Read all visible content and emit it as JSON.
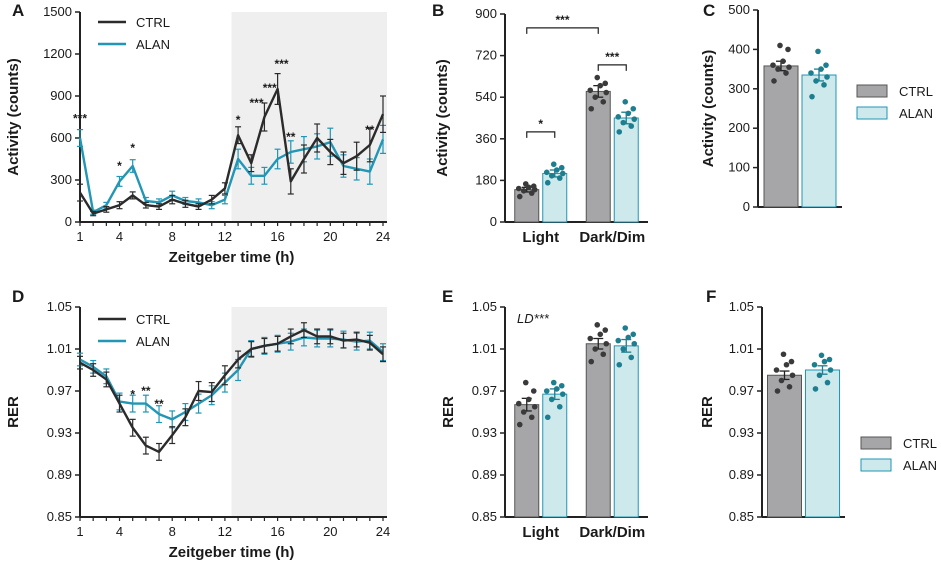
{
  "colors": {
    "ctrl_line": "#2b2b2b",
    "alan_line": "#2196b5",
    "ctrl_bar": "#a6a6a8",
    "alan_bar": "#cde9ec",
    "shade": "#efefef",
    "ctrl_dot": "#3a3a3a",
    "alan_dot": "#1c7e8f"
  },
  "panel_letters": [
    "A",
    "B",
    "C",
    "D",
    "E",
    "F"
  ],
  "chart_data": [
    {
      "id": "A",
      "type": "line",
      "xlabel": "Zeitgeber time (h)",
      "ylabel": "Activity (counts)",
      "xlim": [
        1,
        24
      ],
      "ylim": [
        0,
        1500
      ],
      "xticks": [
        1,
        4,
        8,
        12,
        16,
        20,
        24
      ],
      "xtick_labels": [
        "1",
        "4",
        "8",
        "12",
        "16",
        "20",
        "24"
      ],
      "yticks": [
        0,
        300,
        600,
        900,
        1200,
        1500
      ],
      "ytick_labels": [
        "0",
        "300",
        "600",
        "900",
        "1200",
        "1500"
      ],
      "shade": [
        12.5,
        24
      ],
      "legend": [
        "CTRL",
        "ALAN"
      ],
      "x": [
        1,
        2,
        3,
        4,
        5,
        6,
        7,
        8,
        9,
        10,
        11,
        12,
        13,
        14,
        15,
        16,
        17,
        18,
        19,
        20,
        21,
        22,
        23,
        24
      ],
      "series": [
        {
          "name": "CTRL",
          "values": [
            210,
            60,
            90,
            120,
            190,
            120,
            110,
            160,
            130,
            110,
            160,
            240,
            620,
            420,
            750,
            950,
            290,
            450,
            600,
            500,
            420,
            470,
            550,
            770
          ],
          "err": [
            60,
            15,
            20,
            25,
            25,
            20,
            20,
            30,
            25,
            20,
            30,
            40,
            60,
            60,
            100,
            110,
            90,
            100,
            100,
            90,
            80,
            100,
            120,
            130
          ]
        },
        {
          "name": "ALAN",
          "values": [
            600,
            70,
            120,
            290,
            400,
            150,
            140,
            190,
            150,
            140,
            120,
            160,
            450,
            330,
            330,
            450,
            500,
            520,
            540,
            570,
            400,
            380,
            360,
            590
          ],
          "err": [
            60,
            15,
            20,
            35,
            45,
            25,
            25,
            30,
            25,
            25,
            25,
            30,
            70,
            60,
            60,
            70,
            80,
            90,
            90,
            100,
            80,
            80,
            90,
            100
          ]
        }
      ],
      "annotations": [
        {
          "x": 1,
          "y": 710,
          "text": "***"
        },
        {
          "x": 4,
          "y": 370,
          "text": "*"
        },
        {
          "x": 5,
          "y": 500,
          "text": "*"
        },
        {
          "x": 13,
          "y": 700,
          "text": "*"
        },
        {
          "x": 14.4,
          "y": 820,
          "text": "***"
        },
        {
          "x": 15.4,
          "y": 930,
          "text": "***"
        },
        {
          "x": 16.3,
          "y": 1100,
          "text": "***"
        },
        {
          "x": 17,
          "y": 580,
          "text": "**"
        },
        {
          "x": 23,
          "y": 630,
          "text": "**"
        }
      ]
    },
    {
      "id": "B",
      "type": "bar",
      "categories": [
        "Light",
        "Dark/Dim"
      ],
      "ylabel": "Activity (counts)",
      "ylim": [
        0,
        900
      ],
      "yticks": [
        0,
        180,
        360,
        540,
        720,
        900
      ],
      "ytick_labels": [
        "0",
        "180",
        "360",
        "540",
        "720",
        "900"
      ],
      "series": [
        {
          "name": "CTRL",
          "values": [
            140,
            565
          ],
          "err": [
            10,
            25
          ],
          "points": [
            [
              110,
              125,
              135,
              140,
              145,
              150,
              155,
              165
            ],
            [
              490,
              520,
              540,
              560,
              570,
              590,
              600,
              625
            ]
          ]
        },
        {
          "name": "ALAN",
          "values": [
            210,
            450
          ],
          "err": [
            15,
            25
          ],
          "points": [
            [
              170,
              190,
              200,
              210,
              215,
              225,
              235,
              250
            ],
            [
              390,
              415,
              430,
              445,
              455,
              470,
              490,
              520
            ]
          ]
        }
      ],
      "brackets": [
        {
          "from": [
            0,
            0
          ],
          "to": [
            0,
            1
          ],
          "y": 390,
          "text": "*"
        },
        {
          "from": [
            0,
            0
          ],
          "to": [
            1,
            0
          ],
          "y": 840,
          "text": "***"
        },
        {
          "from": [
            1,
            0
          ],
          "to": [
            1,
            1
          ],
          "y": 680,
          "text": "***"
        }
      ]
    },
    {
      "id": "C",
      "type": "bar",
      "categories": [
        ""
      ],
      "ylabel": "Activity (counts)",
      "ylim": [
        0,
        500
      ],
      "yticks": [
        0,
        100,
        200,
        300,
        400,
        500
      ],
      "ytick_labels": [
        "0",
        "100",
        "200",
        "300",
        "400",
        "500"
      ],
      "legend": [
        "CTRL",
        "ALAN"
      ],
      "series": [
        {
          "name": "CTRL",
          "values": [
            358
          ],
          "err": [
            12
          ],
          "points": [
            [
              320,
              340,
              350,
              355,
              360,
              370,
              400,
              410
            ]
          ]
        },
        {
          "name": "ALAN",
          "values": [
            335
          ],
          "err": [
            15
          ],
          "points": [
            [
              280,
              310,
              320,
              330,
              340,
              350,
              360,
              395
            ]
          ]
        }
      ]
    },
    {
      "id": "D",
      "type": "line",
      "xlabel": "Zeitgeber time (h)",
      "ylabel": "RER",
      "xlim": [
        1,
        24
      ],
      "ylim": [
        0.85,
        1.05
      ],
      "xticks": [
        1,
        4,
        8,
        12,
        16,
        20,
        24
      ],
      "xtick_labels": [
        "1",
        "4",
        "8",
        "12",
        "16",
        "20",
        "24"
      ],
      "yticks": [
        0.85,
        0.89,
        0.93,
        0.97,
        1.01,
        1.05
      ],
      "ytick_labels": [
        "0.85",
        "0.89",
        "0.93",
        "0.97",
        "1.01",
        "1.05"
      ],
      "shade": [
        12.5,
        24
      ],
      "legend": [
        "CTRL",
        "ALAN"
      ],
      "x": [
        1,
        2,
        3,
        4,
        5,
        6,
        7,
        8,
        9,
        10,
        11,
        12,
        13,
        14,
        15,
        16,
        17,
        18,
        19,
        20,
        21,
        22,
        23,
        24
      ],
      "series": [
        {
          "name": "CTRL",
          "values": [
            0.997,
            0.99,
            0.981,
            0.958,
            0.935,
            0.918,
            0.912,
            0.928,
            0.945,
            0.97,
            0.969,
            0.985,
            1.0,
            1.01,
            1.013,
            1.015,
            1.022,
            1.028,
            1.022,
            1.022,
            1.018,
            1.019,
            1.016,
            1.005
          ],
          "err": [
            0.006,
            0.006,
            0.007,
            0.008,
            0.008,
            0.008,
            0.008,
            0.008,
            0.008,
            0.009,
            0.009,
            0.009,
            0.008,
            0.007,
            0.007,
            0.007,
            0.007,
            0.007,
            0.007,
            0.007,
            0.007,
            0.007,
            0.007,
            0.007
          ]
        },
        {
          "name": "ALAN",
          "values": [
            1.0,
            0.993,
            0.984,
            0.96,
            0.958,
            0.958,
            0.948,
            0.943,
            0.95,
            0.958,
            0.966,
            0.978,
            0.99,
            1.01,
            1.013,
            1.015,
            1.017,
            1.021,
            1.02,
            1.02,
            1.019,
            1.017,
            1.018,
            1.007
          ],
          "err": [
            0.006,
            0.006,
            0.007,
            0.008,
            0.008,
            0.008,
            0.008,
            0.008,
            0.008,
            0.009,
            0.009,
            0.009,
            0.01,
            0.008,
            0.008,
            0.008,
            0.008,
            0.008,
            0.008,
            0.008,
            0.008,
            0.008,
            0.008,
            0.008
          ]
        }
      ],
      "annotations": [
        {
          "x": 5,
          "y": 0.963,
          "text": "*"
        },
        {
          "x": 6,
          "y": 0.966,
          "text": "**"
        },
        {
          "x": 7,
          "y": 0.954,
          "text": "**"
        }
      ]
    },
    {
      "id": "E",
      "type": "bar",
      "categories": [
        "Light",
        "Dark/Dim"
      ],
      "ylabel": "RER",
      "annotation": "LD***",
      "ylim": [
        0.85,
        1.05
      ],
      "yticks": [
        0.85,
        0.89,
        0.93,
        0.97,
        1.01,
        1.05
      ],
      "ytick_labels": [
        "0.85",
        "0.89",
        "0.93",
        "0.97",
        "1.01",
        "1.05"
      ],
      "series": [
        {
          "name": "CTRL",
          "values": [
            0.957,
            1.015
          ],
          "err": [
            0.006,
            0.005
          ],
          "points": [
            [
              0.938,
              0.945,
              0.95,
              0.955,
              0.958,
              0.962,
              0.97,
              0.978
            ],
            [
              0.998,
              1.005,
              1.01,
              1.015,
              1.02,
              1.024,
              1.028,
              1.033
            ]
          ]
        },
        {
          "name": "ALAN",
          "values": [
            0.967,
            1.013
          ],
          "err": [
            0.005,
            0.006
          ],
          "points": [
            [
              0.945,
              0.955,
              0.962,
              0.967,
              0.97,
              0.972,
              0.975,
              0.978
            ],
            [
              0.995,
              1.002,
              1.01,
              1.015,
              1.018,
              1.021,
              1.024,
              1.03
            ]
          ]
        }
      ]
    },
    {
      "id": "F",
      "type": "bar",
      "categories": [
        ""
      ],
      "ylabel": "RER",
      "ylim": [
        0.85,
        1.05
      ],
      "yticks": [
        0.85,
        0.89,
        0.93,
        0.97,
        1.01,
        1.05
      ],
      "ytick_labels": [
        "0.85",
        "0.89",
        "0.93",
        "0.97",
        "1.01",
        "1.05"
      ],
      "legend": [
        "CTRL",
        "ALAN"
      ],
      "series": [
        {
          "name": "CTRL",
          "values": [
            0.985
          ],
          "err": [
            0.004
          ],
          "points": [
            [
              0.97,
              0.974,
              0.98,
              0.985,
              0.99,
              0.995,
              0.998,
              1.005
            ]
          ]
        },
        {
          "name": "ALAN",
          "values": [
            0.99
          ],
          "err": [
            0.004
          ],
          "points": [
            [
              0.972,
              0.978,
              0.985,
              0.99,
              0.995,
              0.998,
              1.0,
              1.004
            ]
          ]
        }
      ]
    }
  ]
}
